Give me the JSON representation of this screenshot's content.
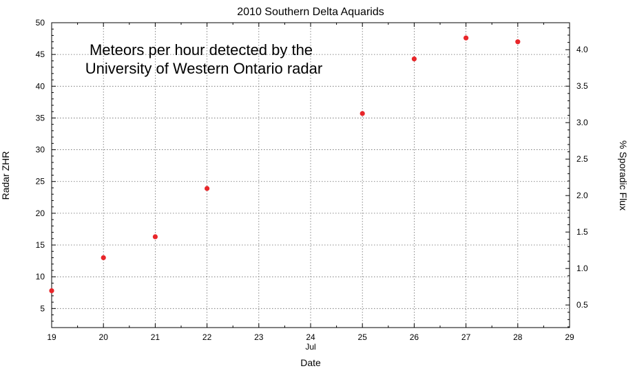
{
  "chart_data": {
    "type": "scatter",
    "title": "2010 Southern Delta Aquarids",
    "xlabel": "Date",
    "x_sublabel": "Jul",
    "ylabel": "Radar ZHR",
    "y2label": "% Sporadic Flux",
    "annotation": [
      "Meteors per hour detected by the",
      "University of Western Ontario radar"
    ],
    "xlim": [
      19,
      29
    ],
    "ylim": [
      2,
      50
    ],
    "y2lim": [
      0.19,
      4.37
    ],
    "xticks": [
      "19",
      "20",
      "21",
      "22",
      "23",
      "24",
      "25",
      "26",
      "27",
      "28",
      "29"
    ],
    "yticks": [
      "5",
      "10",
      "15",
      "20",
      "25",
      "30",
      "35",
      "40",
      "45",
      "50"
    ],
    "y2ticks": [
      "0.5",
      "1.0",
      "1.5",
      "2.0",
      "2.5",
      "3.0",
      "3.5",
      "4.0"
    ],
    "grid": true,
    "marker_color": "#e8262a",
    "series": [
      {
        "x": [
          19,
          20,
          21,
          22,
          25,
          26,
          27,
          28
        ],
        "y": [
          7.8,
          13.0,
          16.3,
          23.9,
          35.7,
          44.3,
          47.6,
          47.0
        ]
      }
    ]
  }
}
